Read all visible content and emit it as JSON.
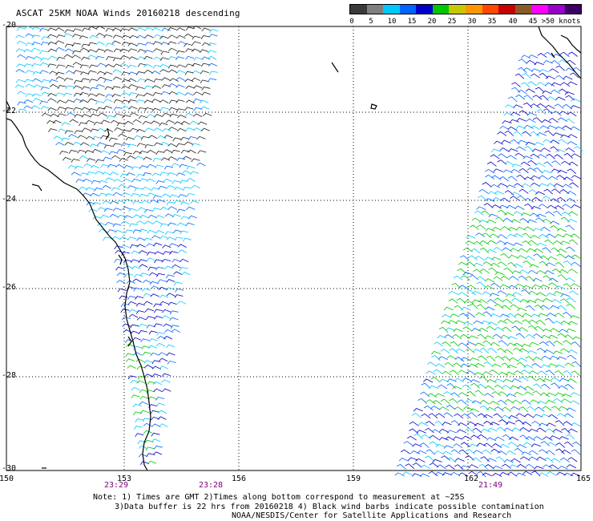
{
  "title": "ASCAT 25KM NOAA Winds 20160218 descending",
  "scale": {
    "colors": [
      "#3a3a3a",
      "#7f7f7f",
      "#00c8ff",
      "#0064ff",
      "#0000c8",
      "#00c800",
      "#c8c800",
      "#ff9600",
      "#ff4800",
      "#c80000",
      "#8b5a2b",
      "#ff00ff",
      "#9600c8",
      "#3c0064"
    ],
    "labels": [
      "0",
      "5",
      "10",
      "15",
      "20",
      "25",
      "30",
      "35",
      "40",
      "45",
      ">50 knots"
    ]
  },
  "axes": {
    "lon_labels": [
      "150",
      "153",
      "156",
      "159",
      "162",
      "165"
    ],
    "lat_labels": [
      "-20",
      "-22",
      "-24",
      "-26",
      "-28",
      "-30"
    ]
  },
  "times": [
    "23:29",
    "23:28",
    "21:49"
  ],
  "notes": {
    "line1": "Note: 1) Times are GMT 2)Times along bottom correspond to measurement at ~25S",
    "line2": "3)Data buffer is 22 hrs from 20160218 4) Black wind barbs indicate possible contamination",
    "line3": "NOAA/NESDIS/Center for Satellite Applications and Research"
  }
}
